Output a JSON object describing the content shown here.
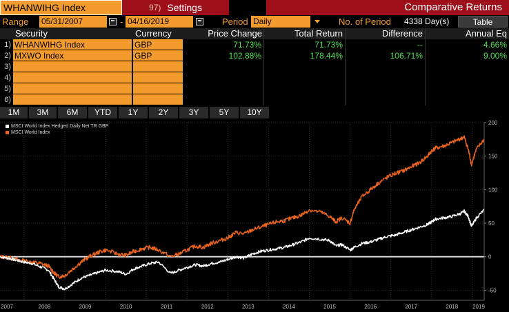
{
  "header": {
    "ticker": "WHANWIHG Index",
    "settings_num": "97)",
    "settings_label": "Settings",
    "title": "Comparative Returns"
  },
  "controls": {
    "range_label": "Range",
    "start_date": "05/31/2007",
    "separator": "-",
    "end_date": "04/16/2019",
    "period_label": "Period",
    "period_value": "Daily",
    "nop_label": "No. of Period",
    "nop_value": "4338 Day(s)",
    "table_label": "Table"
  },
  "table": {
    "headers": [
      "Security",
      "Currency",
      "Price Change",
      "Total Return",
      "Difference",
      "Annual Eq"
    ],
    "rows": [
      {
        "num": "1)",
        "security": "WHANWIHG Index",
        "currency": "GBP",
        "price_change": "71.73%",
        "total_return": "71.73%",
        "difference": "--",
        "annual_eq": "4.66%"
      },
      {
        "num": "2)",
        "security": "MXWO Index",
        "currency": "GBP",
        "price_change": "102.88%",
        "total_return": "178.44%",
        "difference": "106.71%",
        "annual_eq": "9.00%"
      },
      {
        "num": "3)",
        "security": "",
        "currency": "",
        "price_change": "",
        "total_return": "",
        "difference": "",
        "annual_eq": ""
      },
      {
        "num": "4)",
        "security": "",
        "currency": "",
        "price_change": "",
        "total_return": "",
        "difference": "",
        "annual_eq": ""
      },
      {
        "num": "5)",
        "security": "",
        "currency": "",
        "price_change": "",
        "total_return": "",
        "difference": "",
        "annual_eq": ""
      },
      {
        "num": "6)",
        "security": "",
        "currency": "",
        "price_change": "",
        "total_return": "",
        "difference": "",
        "annual_eq": ""
      }
    ]
  },
  "periods": [
    "1M",
    "3M",
    "6M",
    "YTD",
    "1Y",
    "2Y",
    "3Y",
    "5Y",
    "10Y"
  ],
  "colors": {
    "orange": "#f39c2d",
    "red_bar": "#9e0f1a",
    "green": "#50e050",
    "series_white": "#ffffff",
    "series_orange": "#e8641e"
  },
  "chart_data": {
    "type": "line",
    "legend": [
      "MSCI World Index Hedged Daily Net TR GBP",
      "MSCI World Index"
    ],
    "x_ticks": [
      "2007",
      "2008",
      "2009",
      "2010",
      "2011",
      "2012",
      "2013",
      "2014",
      "2015",
      "2016",
      "2017",
      "2018",
      "2019"
    ],
    "xlim": [
      2007.41,
      2019.29
    ],
    "y_ticks": [
      200,
      150,
      100,
      50,
      0,
      -50
    ],
    "ylim": [
      -65,
      200
    ],
    "series": [
      {
        "name": "MSCI World Index Hedged Daily Net TR GBP",
        "x": [
          2007.41,
          2007.6,
          2007.8,
          2008.0,
          2008.2,
          2008.4,
          2008.6,
          2008.75,
          2008.85,
          2009.0,
          2009.2,
          2009.4,
          2009.6,
          2009.8,
          2010.0,
          2010.3,
          2010.5,
          2010.7,
          2010.9,
          2011.1,
          2011.3,
          2011.6,
          2011.8,
          2012.0,
          2012.2,
          2012.4,
          2012.6,
          2012.8,
          2013.0,
          2013.2,
          2013.4,
          2013.6,
          2013.8,
          2014.0,
          2014.2,
          2014.4,
          2014.6,
          2014.8,
          2015.0,
          2015.3,
          2015.5,
          2015.65,
          2015.8,
          2016.0,
          2016.1,
          2016.3,
          2016.5,
          2016.7,
          2016.9,
          2017.1,
          2017.3,
          2017.5,
          2017.7,
          2017.9,
          2018.0,
          2018.1,
          2018.3,
          2018.5,
          2018.7,
          2018.8,
          2018.9,
          2018.98,
          2019.1,
          2019.29
        ],
        "values": [
          0,
          -2,
          -5,
          -8,
          -10,
          -15,
          -20,
          -35,
          -45,
          -48,
          -40,
          -32,
          -28,
          -24,
          -20,
          -22,
          -26,
          -18,
          -14,
          -10,
          -8,
          -25,
          -20,
          -16,
          -12,
          -14,
          -10,
          -8,
          -4,
          0,
          -2,
          4,
          8,
          10,
          12,
          14,
          18,
          22,
          28,
          26,
          24,
          16,
          18,
          10,
          14,
          20,
          22,
          26,
          30,
          32,
          36,
          40,
          44,
          48,
          52,
          56,
          58,
          60,
          64,
          68,
          60,
          45,
          58,
          70
        ]
      },
      {
        "name": "MSCI World Index",
        "x": [
          2007.41,
          2007.6,
          2007.8,
          2008.0,
          2008.2,
          2008.4,
          2008.6,
          2008.75,
          2008.85,
          2009.0,
          2009.2,
          2009.4,
          2009.6,
          2009.8,
          2010.0,
          2010.3,
          2010.5,
          2010.7,
          2010.9,
          2011.1,
          2011.3,
          2011.6,
          2011.8,
          2012.0,
          2012.2,
          2012.4,
          2012.6,
          2012.8,
          2013.0,
          2013.2,
          2013.4,
          2013.6,
          2013.8,
          2014.0,
          2014.2,
          2014.4,
          2014.6,
          2014.8,
          2015.0,
          2015.3,
          2015.5,
          2015.65,
          2015.8,
          2016.0,
          2016.1,
          2016.3,
          2016.5,
          2016.7,
          2016.9,
          2017.1,
          2017.3,
          2017.5,
          2017.7,
          2017.9,
          2018.0,
          2018.1,
          2018.3,
          2018.5,
          2018.7,
          2018.8,
          2018.9,
          2018.98,
          2019.1,
          2019.29
        ],
        "values": [
          0,
          -1,
          -4,
          -6,
          -8,
          -10,
          -14,
          -25,
          -30,
          -28,
          -18,
          -8,
          0,
          6,
          10,
          4,
          2,
          8,
          12,
          14,
          10,
          0,
          4,
          10,
          16,
          14,
          20,
          24,
          28,
          36,
          34,
          40,
          44,
          48,
          52,
          54,
          58,
          62,
          70,
          66,
          60,
          52,
          58,
          50,
          70,
          90,
          100,
          110,
          118,
          124,
          128,
          134,
          140,
          150,
          158,
          162,
          165,
          170,
          176,
          178,
          160,
          138,
          160,
          175
        ]
      }
    ]
  }
}
